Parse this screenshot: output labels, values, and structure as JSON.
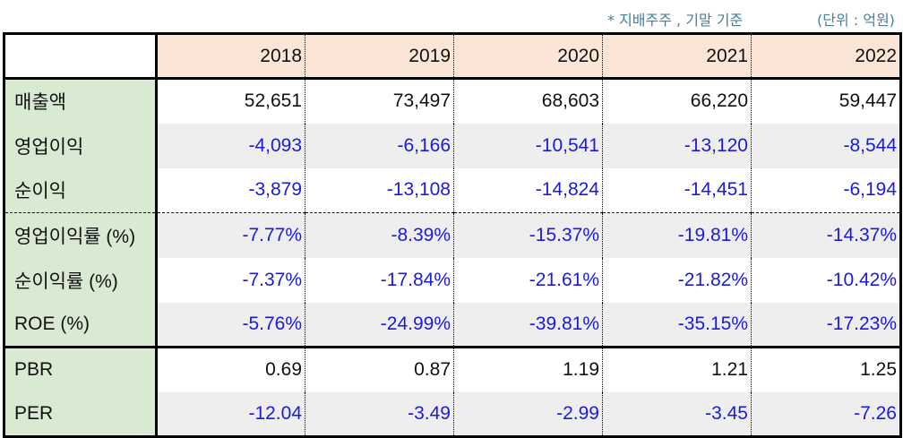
{
  "header_note": "* 지배주주 , 기말 기준",
  "unit_note": "(단위 : 억원)",
  "table": {
    "years": [
      "2018",
      "2019",
      "2020",
      "2021",
      "2022"
    ],
    "rows": [
      {
        "label": "매출액",
        "values": [
          "52,651",
          "73,497",
          "68,603",
          "66,220",
          "59,447"
        ]
      },
      {
        "label": "영업이익",
        "values": [
          "-4,093",
          "-6,166",
          "-10,541",
          "-13,120",
          "-8,544"
        ]
      },
      {
        "label": "순이익",
        "values": [
          "-3,879",
          "-13,108",
          "-14,824",
          "-14,451",
          "-6,194"
        ]
      },
      {
        "label": "영업이익률 (%)",
        "values": [
          "-7.77%",
          "-8.39%",
          "-15.37%",
          "-19.81%",
          "-14.37%"
        ]
      },
      {
        "label": "순이익률 (%)",
        "values": [
          "-7.37%",
          "-17.84%",
          "-21.61%",
          "-21.82%",
          "-10.42%"
        ]
      },
      {
        "label": "ROE (%)",
        "values": [
          "-5.76%",
          "-24.99%",
          "-39.81%",
          "-35.15%",
          "-17.23%"
        ]
      },
      {
        "label": "PBR",
        "values": [
          "0.69",
          "0.87",
          "1.19",
          "1.21",
          "1.25"
        ]
      },
      {
        "label": "PER",
        "values": [
          "-12.04",
          "-3.49",
          "-2.99",
          "-3.45",
          "-7.26"
        ]
      }
    ]
  }
}
